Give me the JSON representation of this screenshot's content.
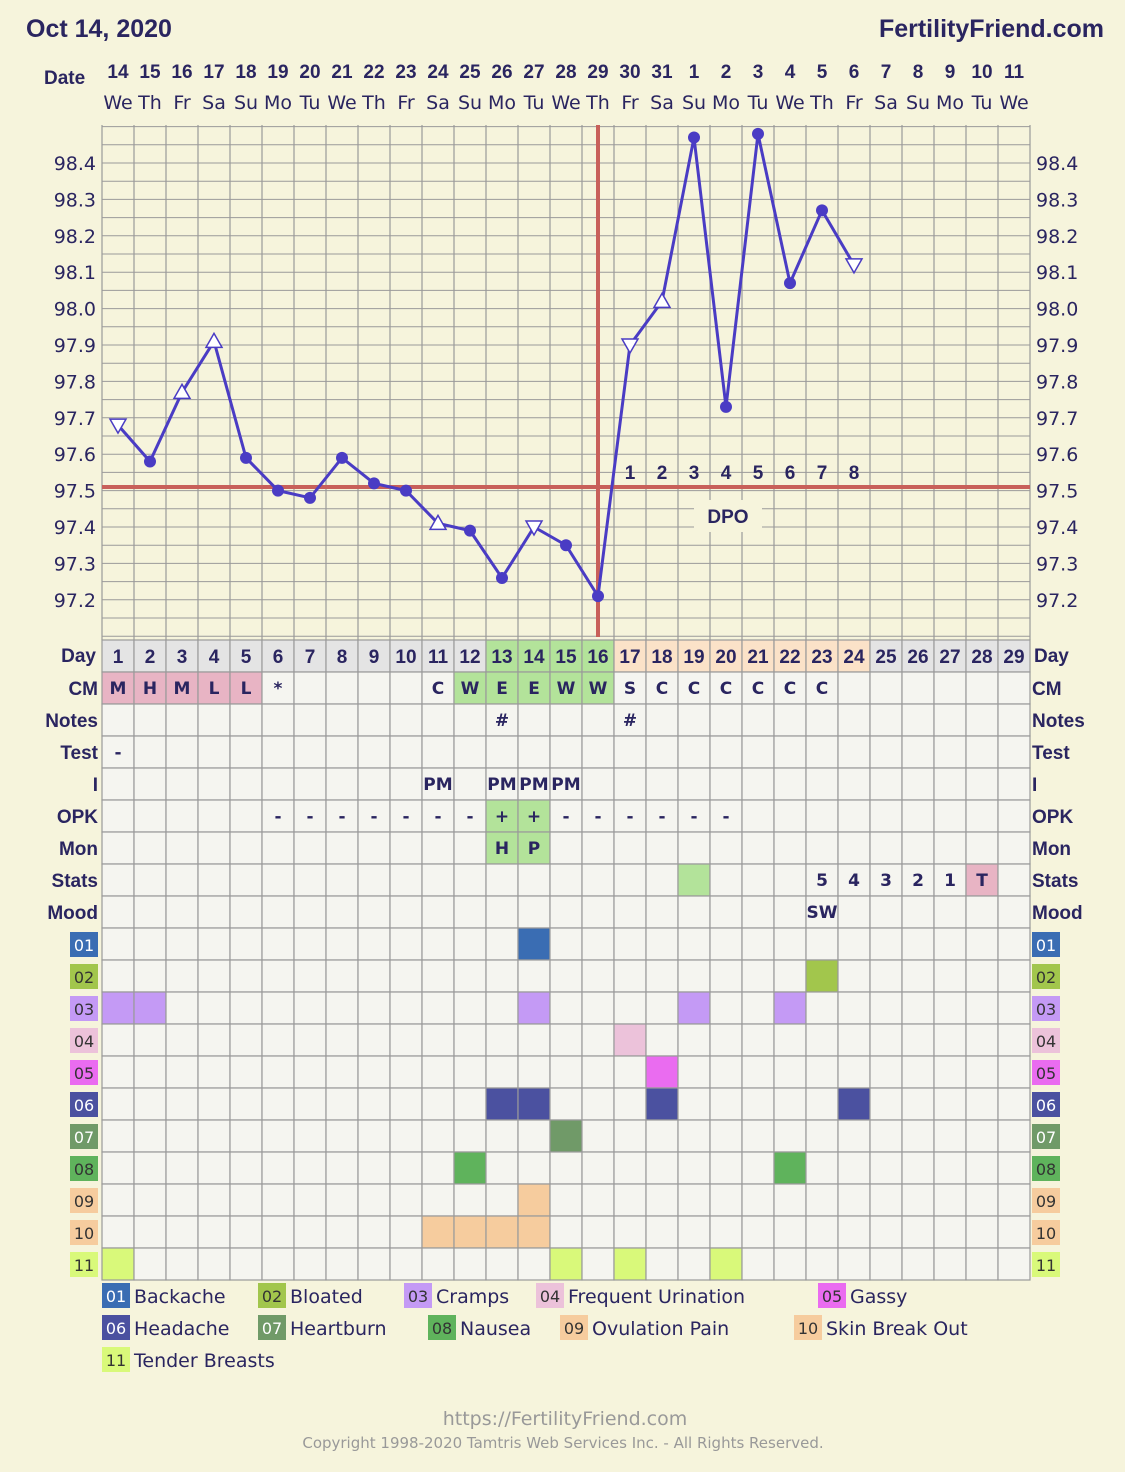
{
  "header": {
    "date": "Oct 14, 2020",
    "site": "FertilityFriend.com"
  },
  "date_label": "Date",
  "dates": [
    {
      "d": "14",
      "w": "We"
    },
    {
      "d": "15",
      "w": "Th"
    },
    {
      "d": "16",
      "w": "Fr"
    },
    {
      "d": "17",
      "w": "Sa"
    },
    {
      "d": "18",
      "w": "Su"
    },
    {
      "d": "19",
      "w": "Mo"
    },
    {
      "d": "20",
      "w": "Tu"
    },
    {
      "d": "21",
      "w": "We"
    },
    {
      "d": "22",
      "w": "Th"
    },
    {
      "d": "23",
      "w": "Fr"
    },
    {
      "d": "24",
      "w": "Sa"
    },
    {
      "d": "25",
      "w": "Su"
    },
    {
      "d": "26",
      "w": "Mo"
    },
    {
      "d": "27",
      "w": "Tu"
    },
    {
      "d": "28",
      "w": "We"
    },
    {
      "d": "29",
      "w": "Th"
    },
    {
      "d": "30",
      "w": "Fr"
    },
    {
      "d": "31",
      "w": "Sa"
    },
    {
      "d": "1",
      "w": "Su"
    },
    {
      "d": "2",
      "w": "Mo"
    },
    {
      "d": "3",
      "w": "Tu"
    },
    {
      "d": "4",
      "w": "We"
    },
    {
      "d": "5",
      "w": "Th"
    },
    {
      "d": "6",
      "w": "Fr"
    },
    {
      "d": "7",
      "w": "Sa"
    },
    {
      "d": "8",
      "w": "Su"
    },
    {
      "d": "9",
      "w": "Mo"
    },
    {
      "d": "10",
      "w": "Tu"
    },
    {
      "d": "11",
      "w": "We"
    }
  ],
  "chart_data": {
    "type": "line",
    "x": [
      1,
      2,
      3,
      4,
      5,
      6,
      7,
      8,
      9,
      10,
      11,
      12,
      13,
      14,
      15,
      16,
      17,
      18,
      19,
      20,
      21,
      22,
      23,
      24,
      25,
      26,
      27,
      28,
      29
    ],
    "y_tick_labels": [
      "98.4",
      "98.3",
      "98.2",
      "98.1",
      "98.0",
      "97.9",
      "97.8",
      "97.7",
      "97.6",
      "97.5",
      "97.4",
      "97.3",
      "97.2"
    ],
    "ylim": [
      97.09,
      98.5
    ],
    "grid": true,
    "series": [
      {
        "values": [
          97.68,
          97.58,
          97.77,
          97.91,
          97.59,
          97.5,
          97.48,
          97.59,
          97.52,
          97.5,
          97.41,
          97.39,
          97.26,
          97.4,
          97.35,
          97.21,
          97.9,
          98.02,
          98.47,
          97.73,
          98.48,
          98.07,
          98.27,
          98.12,
          null,
          null,
          null,
          null,
          null
        ],
        "markers": [
          "tri-down",
          "dot",
          "tri-up",
          "tri-up",
          "dot",
          "dot",
          "dot",
          "dot",
          "dot",
          "dot",
          "tri-up",
          "dot",
          "dot",
          "tri-down",
          "dot",
          "dot",
          "tri-down",
          "tri-up",
          "dot",
          "dot",
          "dot",
          "dot",
          "dot",
          "tri-down",
          null,
          null,
          null,
          null,
          null
        ]
      }
    ],
    "coverline": 97.51,
    "ovulation_day": 16,
    "dpo_days": [
      17,
      18,
      19,
      20,
      21,
      22,
      23,
      24
    ],
    "dpo_labels": [
      "1",
      "2",
      "3",
      "4",
      "5",
      "6",
      "7",
      "8"
    ],
    "dpo_title": "DPO",
    "line_color": "#4a3cc4",
    "marker_ring_color": "#4a3cc4",
    "cover_color": "#c8605a"
  },
  "table": {
    "day_label": "Day",
    "days": [
      "1",
      "2",
      "3",
      "4",
      "5",
      "6",
      "7",
      "8",
      "9",
      "10",
      "11",
      "12",
      "13",
      "14",
      "15",
      "16",
      "17",
      "18",
      "19",
      "20",
      "21",
      "22",
      "23",
      "24",
      "25",
      "26",
      "27",
      "28",
      "29"
    ],
    "day_phase": [
      "m",
      "m",
      "m",
      "m",
      "m",
      "m",
      "m",
      "m",
      "m",
      "m",
      "m",
      "m",
      "f",
      "f",
      "f",
      "f",
      "l",
      "l",
      "l",
      "l",
      "l",
      "l",
      "l",
      "l",
      "n",
      "n",
      "n",
      "n",
      "n"
    ],
    "rows": [
      {
        "label": "CM",
        "values": [
          "M",
          "H",
          "M",
          "L",
          "L",
          "*",
          "",
          "",
          "",
          "",
          "C",
          "W",
          "E",
          "E",
          "W",
          "W",
          "S",
          "C",
          "C",
          "C",
          "C",
          "C",
          "C",
          "",
          "",
          "",
          "",
          "",
          ""
        ],
        "fill": [
          "p",
          "p",
          "p",
          "p",
          "p",
          "",
          "",
          "",
          "",
          "",
          "",
          "g",
          "g",
          "g",
          "g",
          "g",
          "",
          "",
          "",
          "",
          "",
          "",
          "",
          "",
          "",
          "",
          "",
          "",
          ""
        ]
      },
      {
        "label": "Notes",
        "values": [
          "",
          "",
          "",
          "",
          "",
          "",
          "",
          "",
          "",
          "",
          "",
          "",
          "#",
          "",
          "",
          "",
          "#",
          "",
          "",
          "",
          "",
          "",
          "",
          "",
          "",
          "",
          "",
          "",
          ""
        ]
      },
      {
        "label": "Test",
        "values": [
          "-",
          "",
          "",
          "",
          "",
          "",
          "",
          "",
          "",
          "",
          "",
          "",
          "",
          "",
          "",
          "",
          "",
          "",
          "",
          "",
          "",
          "",
          "",
          "",
          "",
          "",
          "",
          "",
          ""
        ]
      },
      {
        "label": "I",
        "values": [
          "",
          "",
          "",
          "",
          "",
          "",
          "",
          "",
          "",
          "",
          "PM",
          "",
          "PM",
          "PM",
          "PM",
          "",
          "",
          "",
          "",
          "",
          "",
          "",
          "",
          "",
          "",
          "",
          "",
          "",
          ""
        ]
      },
      {
        "label": "OPK",
        "values": [
          "",
          "",
          "",
          "",
          "",
          "-",
          "-",
          "-",
          "-",
          "-",
          "-",
          "-",
          "+",
          "+",
          "-",
          "-",
          "-",
          "-",
          "-",
          "-",
          "",
          "",
          "",
          "",
          "",
          "",
          "",
          "",
          ""
        ],
        "fill": [
          "",
          "",
          "",
          "",
          "",
          "",
          "",
          "",
          "",
          "",
          "",
          "",
          "g",
          "g",
          "",
          "",
          "",
          "",
          "",
          "",
          "",
          "",
          "",
          "",
          "",
          "",
          "",
          "",
          ""
        ]
      },
      {
        "label": "Mon",
        "values": [
          "",
          "",
          "",
          "",
          "",
          "",
          "",
          "",
          "",
          "",
          "",
          "",
          "H",
          "P",
          "",
          "",
          "",
          "",
          "",
          "",
          "",
          "",
          "",
          "",
          "",
          "",
          "",
          "",
          ""
        ],
        "fill": [
          "",
          "",
          "",
          "",
          "",
          "",
          "",
          "",
          "",
          "",
          "",
          "",
          "g",
          "g",
          "",
          "",
          "",
          "",
          "",
          "",
          "",
          "",
          "",
          "",
          "",
          "",
          "",
          "",
          ""
        ]
      },
      {
        "label": "Stats",
        "values": [
          "",
          "",
          "",
          "",
          "",
          "",
          "",
          "",
          "",
          "",
          "",
          "",
          "",
          "",
          "",
          "",
          "",
          "",
          "",
          "",
          "",
          "",
          "5",
          "4",
          "3",
          "2",
          "1",
          "T",
          ""
        ],
        "fill": [
          "",
          "",
          "",
          "",
          "",
          "",
          "",
          "",
          "",
          "",
          "",
          "",
          "",
          "",
          "",
          "",
          "",
          "",
          "g",
          "",
          "",
          "",
          "",
          "",
          "",
          "",
          "",
          "p",
          ""
        ]
      },
      {
        "label": "Mood",
        "values": [
          "",
          "",
          "",
          "",
          "",
          "",
          "",
          "",
          "",
          "",
          "",
          "",
          "",
          "",
          "",
          "",
          "",
          "",
          "",
          "",
          "",
          "",
          "SW",
          "",
          "",
          "",
          "",
          "",
          ""
        ]
      }
    ]
  },
  "symptoms": [
    {
      "code": "01",
      "name": "Backache",
      "color": "#3a6db3",
      "text": "#ffffff",
      "days": [
        14
      ]
    },
    {
      "code": "02",
      "name": "Bloated",
      "color": "#a2c64c",
      "text": "#333333",
      "days": [
        23
      ]
    },
    {
      "code": "03",
      "name": "Cramps",
      "color": "#c49af5",
      "text": "#333333",
      "days": [
        1,
        2,
        14,
        19,
        22
      ]
    },
    {
      "code": "04",
      "name": "Frequent Urination",
      "color": "#ecc2da",
      "text": "#333333",
      "days": [
        17
      ]
    },
    {
      "code": "05",
      "name": "Gassy",
      "color": "#ea6cf0",
      "text": "#333333",
      "days": [
        18
      ]
    },
    {
      "code": "06",
      "name": "Headache",
      "color": "#4b51a0",
      "text": "#ffffff",
      "days": [
        13,
        14,
        18,
        24
      ]
    },
    {
      "code": "07",
      "name": "Heartburn",
      "color": "#709a68",
      "text": "#ffffff",
      "days": [
        15
      ]
    },
    {
      "code": "08",
      "name": "Nausea",
      "color": "#5fb35c",
      "text": "#333333",
      "days": [
        12,
        22
      ]
    },
    {
      "code": "09",
      "name": "Ovulation Pain",
      "color": "#f6cc9e",
      "text": "#333333",
      "days": [
        14
      ]
    },
    {
      "code": "10",
      "name": "Skin Break Out",
      "color": "#f6cc9e",
      "text": "#333333",
      "days": [
        11,
        12,
        13,
        14
      ]
    },
    {
      "code": "11",
      "name": "Tender Breasts",
      "color": "#d9f97a",
      "text": "#333333",
      "days": [
        1,
        15,
        17,
        20
      ]
    }
  ],
  "footer": {
    "url": "https://FertilityFriend.com",
    "copyright": "Copyright 1998-2020 Tamtris Web Services Inc. - All Rights Reserved."
  }
}
